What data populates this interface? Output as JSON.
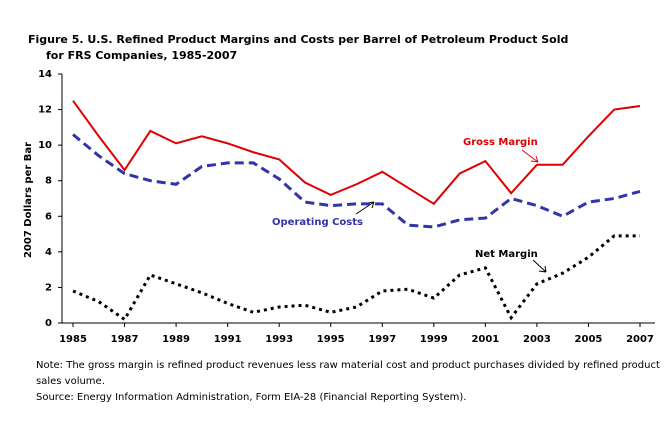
{
  "chart_data": {
    "type": "line",
    "title": [
      "Figure 5.  U.S. Refined Product Margins and Costs per Barrel of Petroleum Product Sold",
      "for FRS Companies, 1985-2007"
    ],
    "y_label": "2007 Dollars per Bar",
    "x": [
      1985,
      1986,
      1987,
      1988,
      1989,
      1990,
      1991,
      1992,
      1993,
      1994,
      1995,
      1996,
      1997,
      1998,
      1999,
      2000,
      2001,
      2002,
      2003,
      2004,
      2005,
      2006,
      2007
    ],
    "xlim": [
      1985,
      2007
    ],
    "xticks": [
      1985,
      1987,
      1989,
      1991,
      1993,
      1995,
      1997,
      1999,
      2001,
      2003,
      2005,
      2007
    ],
    "ylim": [
      0,
      14
    ],
    "yticks": [
      0,
      2,
      4,
      6,
      8,
      10,
      12,
      14
    ],
    "grid": false,
    "series": [
      {
        "name": "Gross Margin",
        "color": "#e00000",
        "style": "solid",
        "values": [
          12.5,
          10.5,
          8.6,
          10.8,
          10.1,
          10.5,
          10.1,
          9.6,
          9.2,
          7.9,
          7.2,
          7.8,
          8.5,
          7.6,
          6.7,
          8.4,
          9.1,
          7.3,
          8.9,
          8.9,
          10.5,
          12.0,
          12.2
        ]
      },
      {
        "name": "Operating Costs",
        "color": "#3333aa",
        "style": "dashed",
        "values": [
          10.6,
          9.4,
          8.4,
          8.0,
          7.8,
          8.8,
          9.0,
          9.0,
          8.1,
          6.8,
          6.6,
          6.7,
          6.7,
          5.5,
          5.4,
          5.8,
          5.9,
          7.0,
          6.6,
          6.0,
          6.8,
          7.0,
          7.4
        ]
      },
      {
        "name": "Net Margin",
        "color": "#000000",
        "style": "dotted",
        "values": [
          1.8,
          1.2,
          0.2,
          2.7,
          2.2,
          1.7,
          1.1,
          0.6,
          0.9,
          1.0,
          0.6,
          0.9,
          1.8,
          1.9,
          1.4,
          2.7,
          3.1,
          0.3,
          2.2,
          2.8,
          3.7,
          4.9,
          4.9
        ]
      }
    ],
    "note": [
      "Note:   The gross margin is refined product revenues less raw material cost and product purchases divided by refined product",
      "sales volume."
    ],
    "source": "Source:  Energy Information Administration, Form EIA-28 (Financial Reporting System)."
  }
}
